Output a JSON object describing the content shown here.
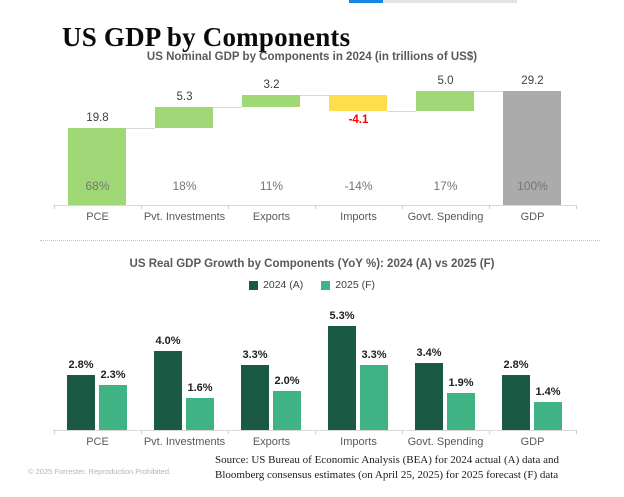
{
  "page": {
    "title": "US GDP by Components",
    "footer_left": "© 2025 Forrester. Reproduction Prohibited.",
    "source_line1": "Source: US Bureau of Economic Analysis (BEA) for 2024 actual (A) data and",
    "source_line2": "Bloomberg consensus estimates (on April 25, 2025) for 2025 forecast (F) data"
  },
  "progress_bar": {
    "fill_percent": 20,
    "fill_color": "#1687e5",
    "track_color": "#e3e3e3"
  },
  "chart_data": [
    {
      "type": "bar",
      "subtype": "waterfall",
      "title": "US Nominal GDP by Components in 2024 (in trillions of US$)",
      "categories": [
        "PCE",
        "Pvt. Investments",
        "Exports",
        "Imports",
        "Govt. Spending",
        "GDP"
      ],
      "values": [
        19.8,
        5.3,
        3.2,
        -4.1,
        5.0,
        29.2
      ],
      "value_labels": [
        "19.8",
        "5.3",
        "3.2",
        "-4.1",
        "5.0",
        "29.2"
      ],
      "share_labels": [
        "68%",
        "18%",
        "11%",
        "-14%",
        "17%",
        "100%"
      ],
      "bar_roles": [
        "increase",
        "increase",
        "increase",
        "decrease",
        "increase",
        "total"
      ],
      "cumulative_levels": [
        19.8,
        25.1,
        28.3,
        24.2,
        29.2,
        29.2
      ],
      "colors": {
        "increase": "#a0d878",
        "decrease": "#ffde4d",
        "total": "#ababab"
      },
      "negative_label_color": "#fe0000",
      "xlabel": "",
      "ylabel": "",
      "ylim": [
        0,
        30
      ],
      "grid": false,
      "legend": false
    },
    {
      "type": "bar",
      "subtype": "grouped",
      "title": "US Real GDP Growth by Components (YoY %): 2024 (A) vs 2025 (F)",
      "categories": [
        "PCE",
        "Pvt. Investments",
        "Exports",
        "Imports",
        "Govt. Spending",
        "GDP"
      ],
      "series": [
        {
          "name": "2024 (A)",
          "color": "#1a5a44",
          "values": [
            2.8,
            4.0,
            3.3,
            5.3,
            3.4,
            2.8
          ],
          "labels": [
            "2.8%",
            "4.0%",
            "3.3%",
            "5.3%",
            "3.4%",
            "2.8%"
          ]
        },
        {
          "name": "2025 (F)",
          "color": "#40b384",
          "values": [
            2.3,
            1.6,
            2.0,
            3.3,
            1.9,
            1.4
          ],
          "labels": [
            "2.3%",
            "1.6%",
            "2.0%",
            "3.3%",
            "1.9%",
            "1.4%"
          ]
        }
      ],
      "xlabel": "",
      "ylabel": "",
      "ylim": [
        0,
        6
      ],
      "grid": false,
      "legend_position": "top"
    }
  ]
}
